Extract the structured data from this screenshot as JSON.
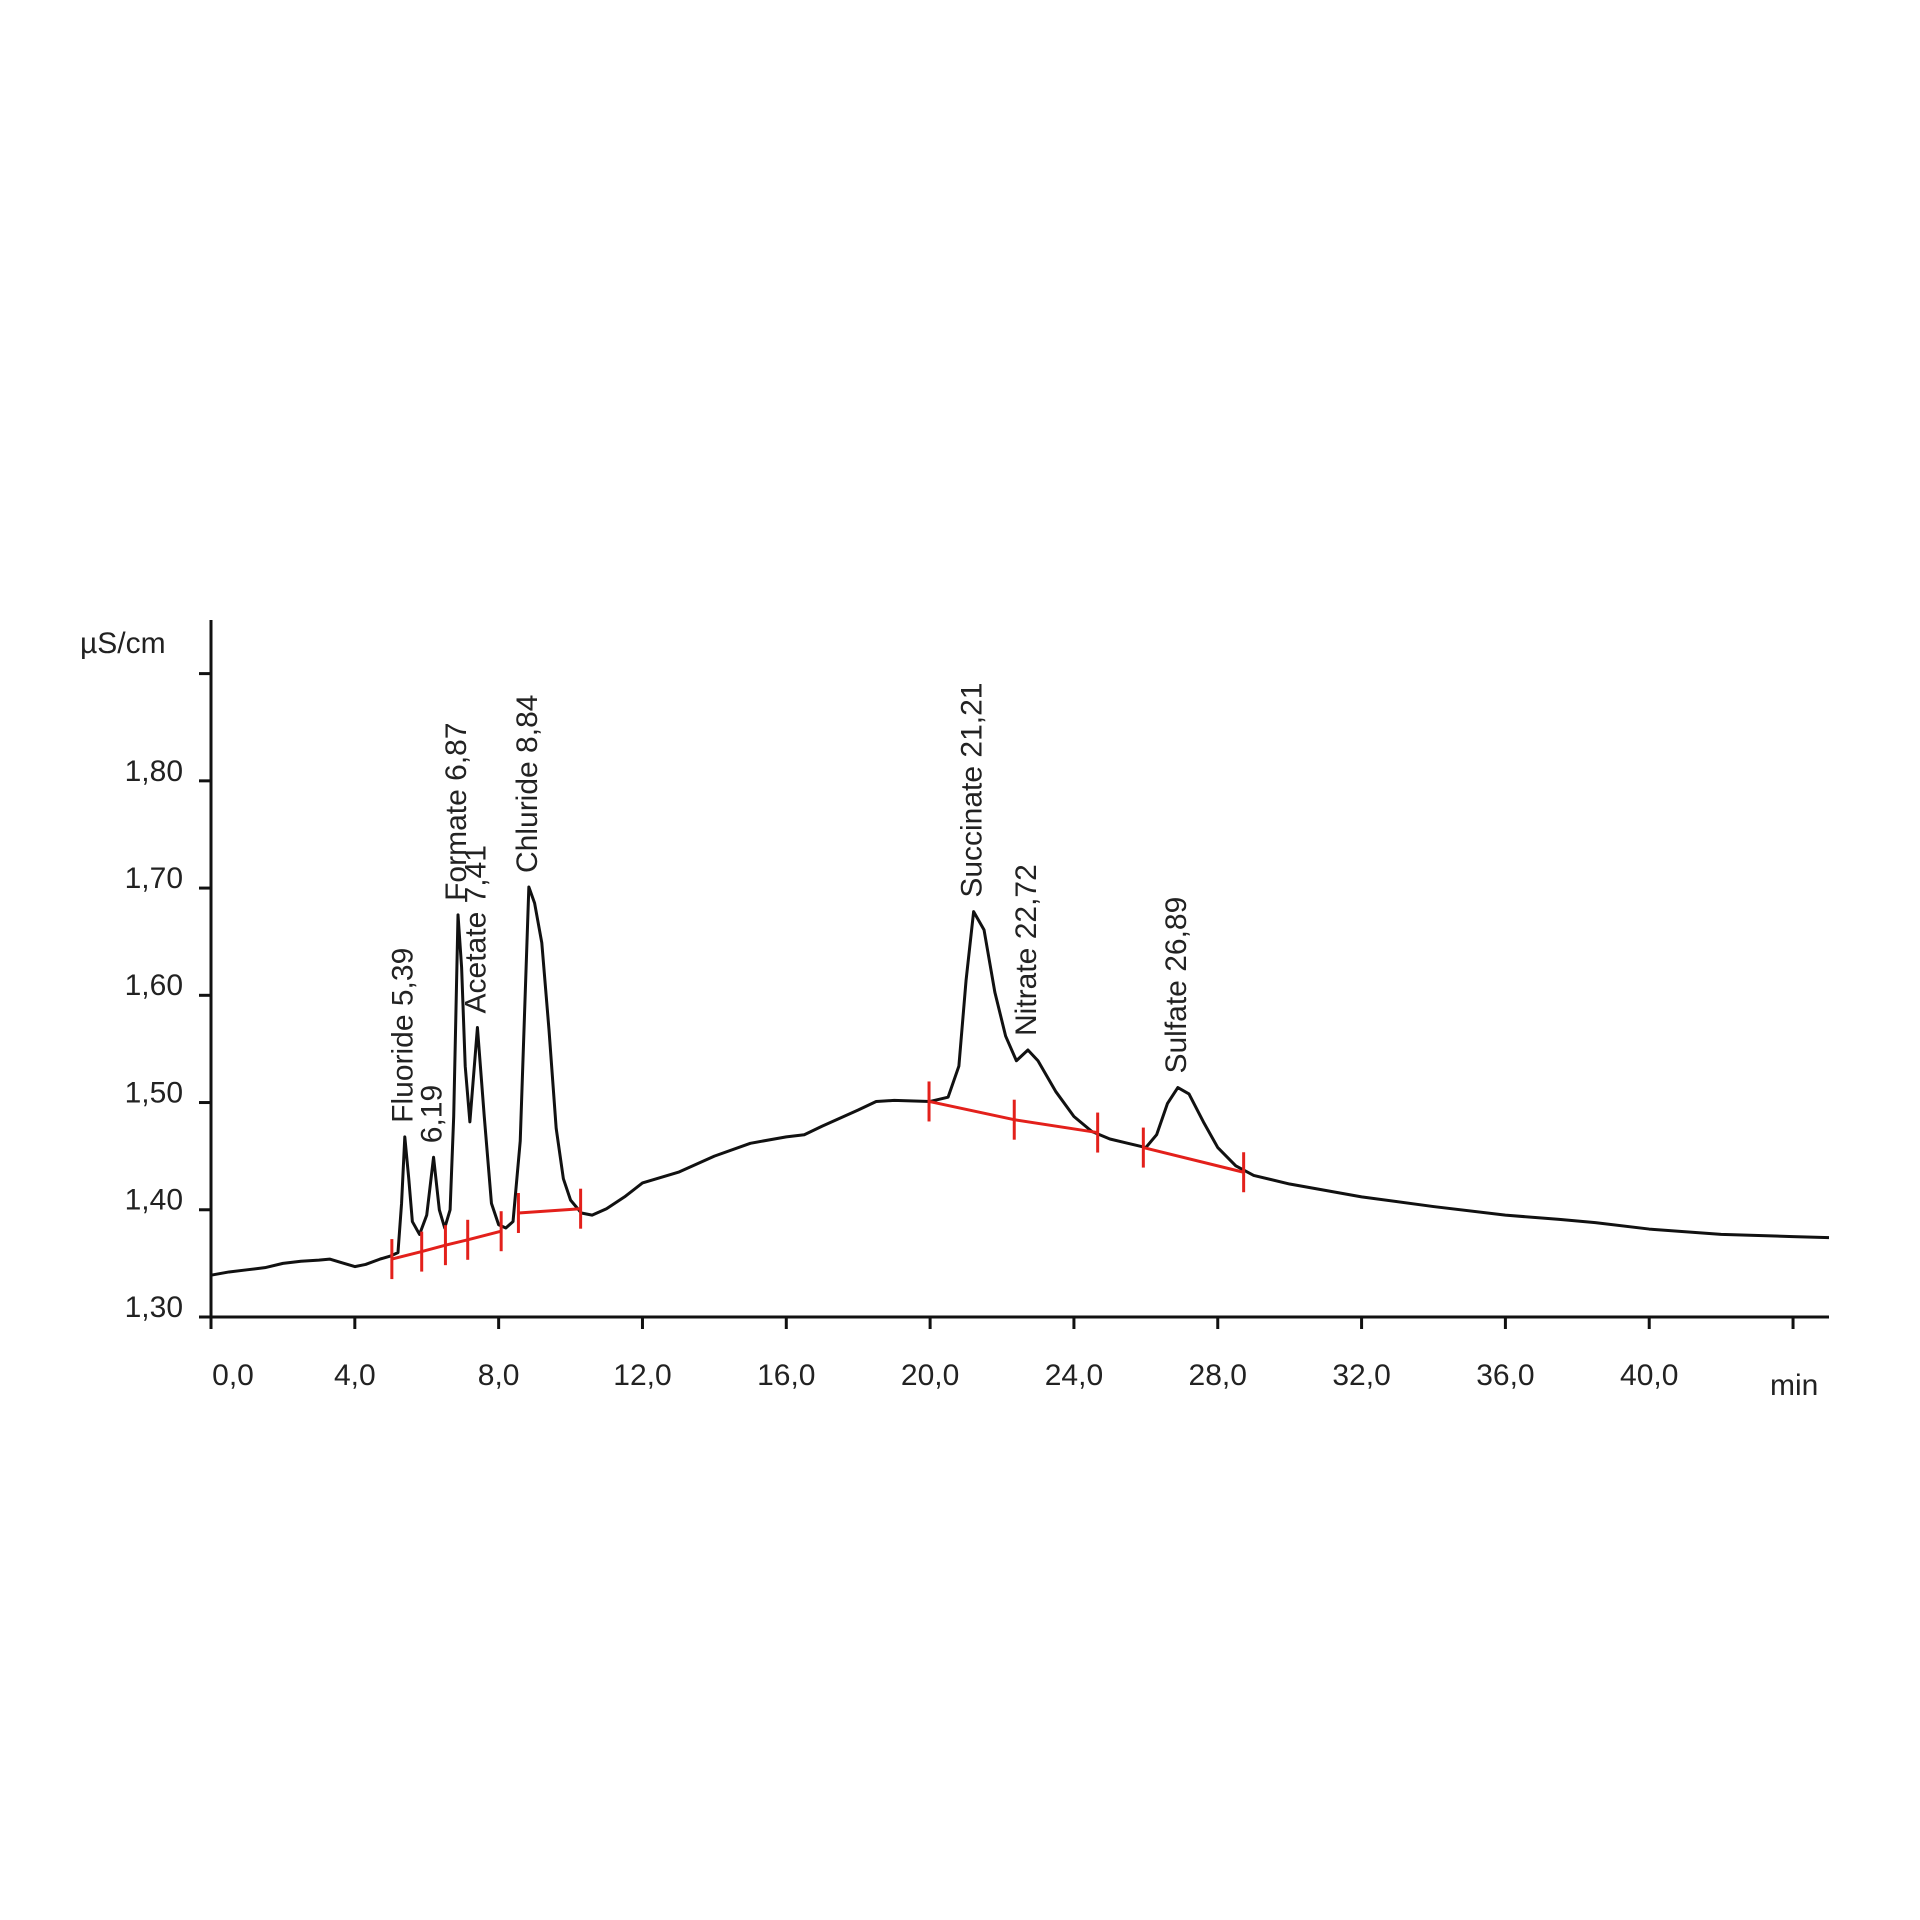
{
  "chart_data": {
    "type": "line",
    "y_label": "µS/cm",
    "x_label": "min",
    "xlim": [
      0,
      45
    ],
    "ylim": [
      1.3,
      1.95
    ],
    "xticks": [
      {
        "value": 0,
        "label": "0,0"
      },
      {
        "value": 4,
        "label": "4,0"
      },
      {
        "value": 8,
        "label": "8,0"
      },
      {
        "value": 12,
        "label": "12,0"
      },
      {
        "value": 16,
        "label": "16,0"
      },
      {
        "value": 20,
        "label": "20,0"
      },
      {
        "value": 24,
        "label": "24,0"
      },
      {
        "value": 28,
        "label": "28,0"
      },
      {
        "value": 32,
        "label": "32,0"
      },
      {
        "value": 36,
        "label": "36,0"
      },
      {
        "value": 40,
        "label": "40,0"
      },
      {
        "value": 44,
        "label": null
      }
    ],
    "yticks": [
      {
        "value": 1.3,
        "label": "1,30"
      },
      {
        "value": 1.4,
        "label": "1,40"
      },
      {
        "value": 1.5,
        "label": "1,50"
      },
      {
        "value": 1.6,
        "label": "1,60"
      },
      {
        "value": 1.7,
        "label": "1,70"
      },
      {
        "value": 1.8,
        "label": "1,80"
      },
      {
        "value": 1.9,
        "label": null
      }
    ],
    "x": [
      0,
      0.5,
      1,
      1.5,
      2,
      2.5,
      3,
      3.3,
      3.6,
      4,
      4.3,
      4.7,
      5,
      5.2,
      5.3,
      5.39,
      5.5,
      5.6,
      5.8,
      6,
      6.19,
      6.35,
      6.5,
      6.65,
      6.75,
      6.87,
      6.97,
      7.07,
      7.2,
      7.41,
      7.6,
      7.8,
      8,
      8.2,
      8.4,
      8.6,
      8.84,
      9,
      9.2,
      9.4,
      9.6,
      9.8,
      10,
      10.3,
      10.6,
      11,
      11.5,
      12,
      13,
      14,
      15,
      16,
      16.5,
      17,
      18,
      18.5,
      19,
      20,
      20.5,
      20.8,
      21,
      21.21,
      21.5,
      21.8,
      22.1,
      22.4,
      22.72,
      23,
      23.5,
      24,
      24.5,
      25,
      25.5,
      26,
      26.3,
      26.6,
      26.89,
      27.2,
      27.6,
      28,
      28.5,
      29,
      30,
      32,
      34,
      36,
      37.5,
      38.5,
      40,
      42,
      44,
      45
    ],
    "series": [
      {
        "color": "#111111",
        "values": [
          1.339,
          1.342,
          1.344,
          1.346,
          1.35,
          1.352,
          1.353,
          1.354,
          1.351,
          1.347,
          1.349,
          1.354,
          1.357,
          1.36,
          1.406,
          1.468,
          1.429,
          1.389,
          1.377,
          1.395,
          1.449,
          1.4,
          1.383,
          1.4,
          1.487,
          1.675,
          1.626,
          1.534,
          1.482,
          1.57,
          1.487,
          1.406,
          1.386,
          1.383,
          1.389,
          1.464,
          1.701,
          1.686,
          1.649,
          1.568,
          1.476,
          1.429,
          1.409,
          1.397,
          1.395,
          1.401,
          1.412,
          1.425,
          1.435,
          1.45,
          1.462,
          1.468,
          1.47,
          1.478,
          1.493,
          1.501,
          1.502,
          1.501,
          1.505,
          1.534,
          1.614,
          1.678,
          1.661,
          1.603,
          1.562,
          1.539,
          1.549,
          1.539,
          1.51,
          1.487,
          1.473,
          1.466,
          1.462,
          1.458,
          1.47,
          1.499,
          1.514,
          1.508,
          1.482,
          1.458,
          1.441,
          1.432,
          1.424,
          1.412,
          1.403,
          1.395,
          1.391,
          1.388,
          1.382,
          1.377,
          1.375,
          1.374
        ]
      }
    ],
    "baselines": [
      {
        "x": [
          5.03,
          5.86,
          6.52,
          7.14,
          8.07
        ],
        "y": [
          1.354,
          1.361,
          1.367,
          1.372,
          1.38
        ]
      },
      {
        "x": [
          8.55,
          10.28
        ],
        "y": [
          1.397,
          1.401
        ]
      },
      {
        "x": [
          19.97,
          22.34,
          24.66
        ],
        "y": [
          1.501,
          1.484,
          1.472
        ]
      },
      {
        "x": [
          25.93,
          28.72
        ],
        "y": [
          1.458,
          1.435
        ]
      }
    ],
    "baseline_color": "#e3201b",
    "annotations": [
      {
        "text": "Fluoride 5,39",
        "x": 5.39
      },
      {
        "text": "6,19",
        "x": 6.19
      },
      {
        "text": "Formate 6,87",
        "x": 6.87
      },
      {
        "text": "Acetate 7,41",
        "x": 7.41
      },
      {
        "text": "Chluride 8,84",
        "x": 8.84
      },
      {
        "text": "Succinate 21,21",
        "x": 21.21
      },
      {
        "text": "Nitrate 22,72",
        "x": 22.72
      },
      {
        "text": "Sulfate 26,89",
        "x": 26.89
      }
    ]
  }
}
